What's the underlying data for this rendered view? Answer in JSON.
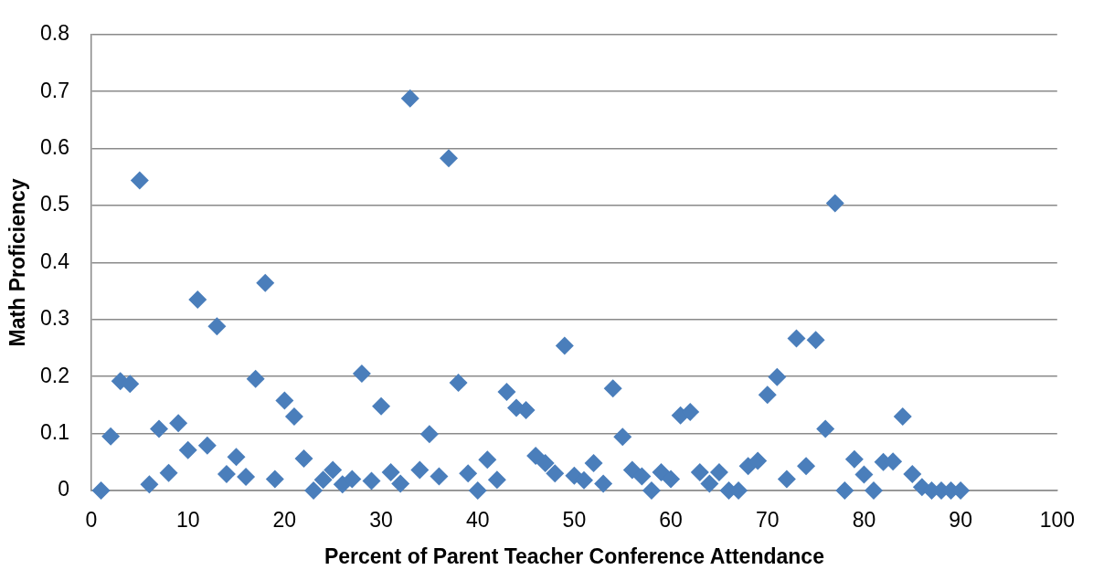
{
  "chart_data": {
    "type": "scatter",
    "xlabel": "Percent of Parent Teacher Conference Attendance",
    "ylabel": "Math Proficiency",
    "x": [
      1,
      2,
      3,
      4,
      5,
      6,
      7,
      8,
      9,
      10,
      11,
      12,
      13,
      14,
      15,
      16,
      17,
      18,
      19,
      20,
      21,
      22,
      23,
      24,
      25,
      26,
      27,
      28,
      29,
      30,
      31,
      32,
      33,
      34,
      35,
      36,
      37,
      38,
      39,
      40,
      41,
      42,
      43,
      44,
      45,
      46,
      47,
      48,
      49,
      50,
      51,
      52,
      53,
      54,
      55,
      56,
      57,
      58,
      59,
      60,
      61,
      62,
      63,
      64,
      65,
      66,
      67,
      68,
      69,
      70,
      71,
      72,
      73,
      74,
      75,
      76,
      77,
      78,
      79,
      80,
      81,
      82,
      83,
      84,
      85,
      86,
      87,
      88,
      89,
      90
    ],
    "values": [
      0.0,
      0.095,
      0.192,
      0.187,
      0.544,
      0.011,
      0.108,
      0.031,
      0.118,
      0.071,
      0.335,
      0.079,
      0.288,
      0.029,
      0.059,
      0.024,
      0.196,
      0.364,
      0.02,
      0.158,
      0.13,
      0.056,
      0.0,
      0.019,
      0.036,
      0.011,
      0.02,
      0.205,
      0.017,
      0.148,
      0.032,
      0.012,
      0.688,
      0.036,
      0.099,
      0.025,
      0.583,
      0.189,
      0.03,
      0.0,
      0.054,
      0.019,
      0.173,
      0.145,
      0.141,
      0.061,
      0.048,
      0.03,
      0.254,
      0.026,
      0.018,
      0.048,
      0.012,
      0.179,
      0.094,
      0.036,
      0.025,
      0.0,
      0.032,
      0.02,
      0.132,
      0.138,
      0.032,
      0.012,
      0.032,
      0.0,
      0.0,
      0.043,
      0.052,
      0.168,
      0.199,
      0.02,
      0.267,
      0.043,
      0.264,
      0.108,
      0.504,
      0.0,
      0.055,
      0.028,
      0.0,
      0.05,
      0.051,
      0.13,
      0.029,
      0.006,
      0.0,
      0.0,
      0.0,
      0.0
    ],
    "color": "#4a7ebb",
    "marker": "diamond",
    "grid": "y",
    "xlim": [
      0,
      100
    ],
    "xticks": [
      0,
      10,
      20,
      30,
      40,
      50,
      60,
      70,
      80,
      90,
      100
    ],
    "ylim": [
      0,
      0.8
    ],
    "yticks": [
      0,
      0.1,
      0.2,
      0.3,
      0.4,
      0.5,
      0.6,
      0.7,
      0.8
    ]
  }
}
